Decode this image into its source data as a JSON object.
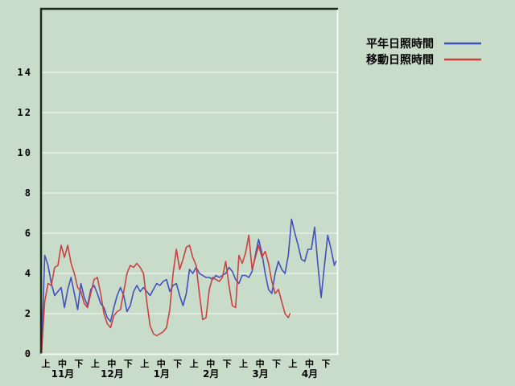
{
  "colors": {
    "background": "#c9dcc9",
    "grid": "#eaf2ea",
    "border_dark": "#1c2b1c",
    "border_light": "#f4f8f4",
    "text": "#000000",
    "series_blue": "#4050c0",
    "series_red": "#cb4040"
  },
  "chart_data": {
    "type": "line",
    "title": "",
    "xlabel": "",
    "ylabel": "",
    "grid": "horizontal gridlines on",
    "legend_position": "top-right outside plot",
    "y_axis": {
      "ticks": [
        0,
        2,
        4,
        6,
        8,
        10,
        12,
        14
      ],
      "range": [
        0,
        17.2
      ]
    },
    "x_axis": {
      "tick_labels": [
        "上",
        "中",
        "下",
        "上",
        "中",
        "下",
        "上",
        "中",
        "下",
        "上",
        "中",
        "下",
        "上",
        "中",
        "下",
        "上",
        "中",
        "下"
      ],
      "month_labels": [
        "11月",
        "12月",
        "1月",
        "2月",
        "3月",
        "4月"
      ],
      "note": "x unit = days from Nov 1; ticks mark early/mid/late of each month"
    },
    "series": [
      {
        "name": "平年日照時間",
        "color": "#4050c0",
        "points": [
          [
            0,
            0
          ],
          [
            2,
            4.9
          ],
          [
            4,
            4.4
          ],
          [
            6,
            3.5
          ],
          [
            8,
            2.9
          ],
          [
            10,
            3.1
          ],
          [
            12,
            3.3
          ],
          [
            14,
            2.3
          ],
          [
            16,
            3.2
          ],
          [
            18,
            3.8
          ],
          [
            20,
            3.0
          ],
          [
            22,
            2.2
          ],
          [
            24,
            3.5
          ],
          [
            26,
            2.8
          ],
          [
            28,
            2.4
          ],
          [
            30,
            3.2
          ],
          [
            32,
            3.4
          ],
          [
            34,
            3.0
          ],
          [
            36,
            2.5
          ],
          [
            38,
            2.3
          ],
          [
            40,
            1.8
          ],
          [
            42,
            1.6
          ],
          [
            44,
            2.3
          ],
          [
            46,
            2.9
          ],
          [
            48,
            3.3
          ],
          [
            50,
            2.9
          ],
          [
            52,
            2.1
          ],
          [
            54,
            2.4
          ],
          [
            56,
            3.1
          ],
          [
            58,
            3.4
          ],
          [
            60,
            3.1
          ],
          [
            62,
            3.3
          ],
          [
            64,
            3.1
          ],
          [
            66,
            2.9
          ],
          [
            68,
            3.2
          ],
          [
            70,
            3.5
          ],
          [
            72,
            3.4
          ],
          [
            74,
            3.6
          ],
          [
            76,
            3.7
          ],
          [
            78,
            3.1
          ],
          [
            80,
            3.4
          ],
          [
            82,
            3.5
          ],
          [
            84,
            2.9
          ],
          [
            86,
            2.4
          ],
          [
            88,
            3.0
          ],
          [
            90,
            4.2
          ],
          [
            92,
            4.0
          ],
          [
            94,
            4.3
          ],
          [
            96,
            4.0
          ],
          [
            98,
            3.9
          ],
          [
            100,
            3.8
          ],
          [
            102,
            3.8
          ],
          [
            104,
            3.7
          ],
          [
            106,
            3.9
          ],
          [
            108,
            3.8
          ],
          [
            110,
            3.9
          ],
          [
            112,
            4.0
          ],
          [
            114,
            4.3
          ],
          [
            116,
            4.1
          ],
          [
            118,
            3.7
          ],
          [
            120,
            3.5
          ],
          [
            122,
            3.9
          ],
          [
            124,
            3.9
          ],
          [
            126,
            3.8
          ],
          [
            128,
            4.1
          ],
          [
            130,
            4.9
          ],
          [
            132,
            5.7
          ],
          [
            134,
            5.0
          ],
          [
            136,
            4.0
          ],
          [
            138,
            3.2
          ],
          [
            140,
            3.0
          ],
          [
            142,
            4.0
          ],
          [
            144,
            4.6
          ],
          [
            146,
            4.2
          ],
          [
            148,
            4.0
          ],
          [
            150,
            4.9
          ],
          [
            152,
            6.7
          ],
          [
            154,
            6.0
          ],
          [
            156,
            5.4
          ],
          [
            158,
            4.7
          ],
          [
            160,
            4.6
          ],
          [
            162,
            5.2
          ],
          [
            164,
            5.2
          ],
          [
            166,
            6.3
          ],
          [
            168,
            4.4
          ],
          [
            170,
            2.8
          ],
          [
            172,
            4.4
          ],
          [
            174,
            5.9
          ],
          [
            176,
            5.2
          ],
          [
            178,
            4.4
          ],
          [
            179,
            4.6
          ]
        ]
      },
      {
        "name": "移動日照時間",
        "color": "#cb4040",
        "points": [
          [
            0,
            0
          ],
          [
            2,
            2.6
          ],
          [
            4,
            3.5
          ],
          [
            6,
            3.4
          ],
          [
            8,
            4.3
          ],
          [
            10,
            4.4
          ],
          [
            12,
            5.4
          ],
          [
            14,
            4.8
          ],
          [
            16,
            5.4
          ],
          [
            18,
            4.5
          ],
          [
            20,
            4.0
          ],
          [
            22,
            3.3
          ],
          [
            24,
            3.1
          ],
          [
            26,
            2.5
          ],
          [
            28,
            2.3
          ],
          [
            30,
            3.0
          ],
          [
            32,
            3.7
          ],
          [
            34,
            3.8
          ],
          [
            36,
            3.0
          ],
          [
            38,
            2.0
          ],
          [
            40,
            1.5
          ],
          [
            42,
            1.3
          ],
          [
            44,
            1.9
          ],
          [
            46,
            2.1
          ],
          [
            48,
            2.2
          ],
          [
            50,
            3.1
          ],
          [
            52,
            4.0
          ],
          [
            54,
            4.4
          ],
          [
            56,
            4.3
          ],
          [
            58,
            4.5
          ],
          [
            60,
            4.3
          ],
          [
            62,
            4.0
          ],
          [
            64,
            2.6
          ],
          [
            66,
            1.4
          ],
          [
            68,
            1.0
          ],
          [
            70,
            0.9
          ],
          [
            72,
            1.0
          ],
          [
            74,
            1.1
          ],
          [
            76,
            1.3
          ],
          [
            78,
            2.2
          ],
          [
            80,
            4.0
          ],
          [
            82,
            5.2
          ],
          [
            84,
            4.2
          ],
          [
            86,
            4.7
          ],
          [
            88,
            5.3
          ],
          [
            90,
            5.4
          ],
          [
            92,
            4.8
          ],
          [
            94,
            4.4
          ],
          [
            96,
            3.0
          ],
          [
            98,
            1.7
          ],
          [
            100,
            1.8
          ],
          [
            102,
            3.2
          ],
          [
            104,
            3.8
          ],
          [
            106,
            3.7
          ],
          [
            108,
            3.6
          ],
          [
            110,
            3.8
          ],
          [
            112,
            4.6
          ],
          [
            114,
            3.4
          ],
          [
            116,
            2.4
          ],
          [
            118,
            2.3
          ],
          [
            120,
            4.9
          ],
          [
            122,
            4.5
          ],
          [
            124,
            5.0
          ],
          [
            126,
            5.9
          ],
          [
            128,
            4.2
          ],
          [
            130,
            4.8
          ],
          [
            132,
            5.4
          ],
          [
            134,
            4.8
          ],
          [
            136,
            5.1
          ],
          [
            138,
            4.5
          ],
          [
            140,
            3.6
          ],
          [
            142,
            3.0
          ],
          [
            144,
            3.2
          ],
          [
            146,
            2.6
          ],
          [
            148,
            2.0
          ],
          [
            150,
            1.8
          ],
          [
            151,
            2.0
          ]
        ]
      }
    ]
  }
}
